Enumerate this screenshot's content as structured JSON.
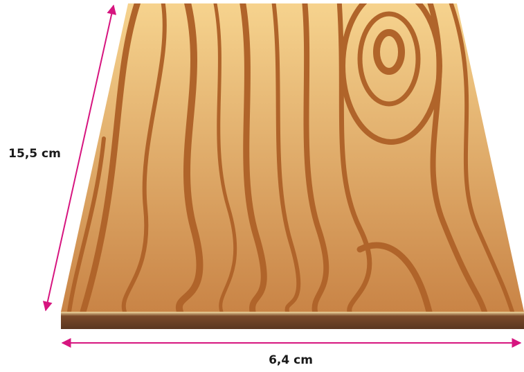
{
  "labels": {
    "side": "15,5 cm",
    "bottom": "6,4 cm"
  }
}
